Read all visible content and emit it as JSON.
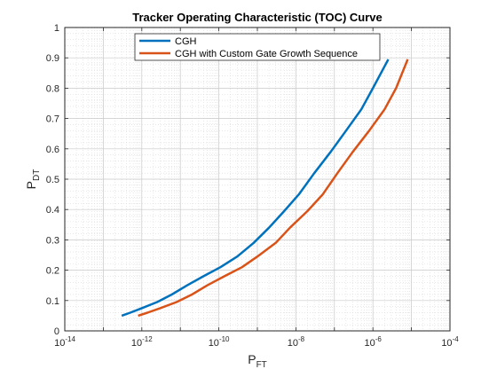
{
  "chart_data": {
    "type": "line",
    "title": "Tracker Operating Characteristic (TOC) Curve",
    "xlabel": {
      "main": "P",
      "sub": "FT"
    },
    "ylabel": {
      "main": "P",
      "sub": "DT"
    },
    "xscale": "log",
    "xlim": [
      1e-14,
      0.0001
    ],
    "ylim": [
      0,
      1
    ],
    "grid": true,
    "minor_grid": true,
    "legend_placement": "top-center",
    "x_ticks": [
      {
        "base": "10",
        "exp": "-14"
      },
      {
        "base": "10",
        "exp": "-12"
      },
      {
        "base": "10",
        "exp": "-10"
      },
      {
        "base": "10",
        "exp": "-8"
      },
      {
        "base": "10",
        "exp": "-6"
      },
      {
        "base": "10",
        "exp": "-4"
      }
    ],
    "y_ticks": [
      "0",
      "0.1",
      "0.2",
      "0.3",
      "0.4",
      "0.5",
      "0.6",
      "0.7",
      "0.8",
      "0.9",
      "1"
    ],
    "series": [
      {
        "name": "CGH",
        "color": "#0072BD",
        "x": [
          3e-13,
          5e-13,
          1e-12,
          2.5e-12,
          6e-12,
          1.5e-11,
          4e-11,
          1.1e-10,
          3e-10,
          8e-10,
          2e-09,
          5e-09,
          1.2e-08,
          3e-08,
          8e-08,
          2e-07,
          5e-07,
          1e-06,
          2.5e-06
        ],
        "y": [
          0.05,
          0.06,
          0.075,
          0.095,
          0.12,
          0.15,
          0.18,
          0.21,
          0.245,
          0.29,
          0.34,
          0.395,
          0.45,
          0.52,
          0.59,
          0.66,
          0.73,
          0.8,
          0.895
        ]
      },
      {
        "name": "CGH with Custom Gate Growth Sequence",
        "color": "#D95319",
        "x": [
          8e-13,
          1.4e-12,
          3e-12,
          8e-12,
          2e-11,
          5e-11,
          1.4e-10,
          4e-10,
          1e-09,
          3e-09,
          7e-09,
          2e-08,
          5e-08,
          1.2e-07,
          3e-07,
          8e-07,
          2e-06,
          4e-06,
          8e-06
        ],
        "y": [
          0.05,
          0.06,
          0.075,
          0.095,
          0.12,
          0.15,
          0.18,
          0.21,
          0.245,
          0.29,
          0.34,
          0.395,
          0.45,
          0.52,
          0.59,
          0.66,
          0.73,
          0.8,
          0.895
        ]
      }
    ]
  }
}
